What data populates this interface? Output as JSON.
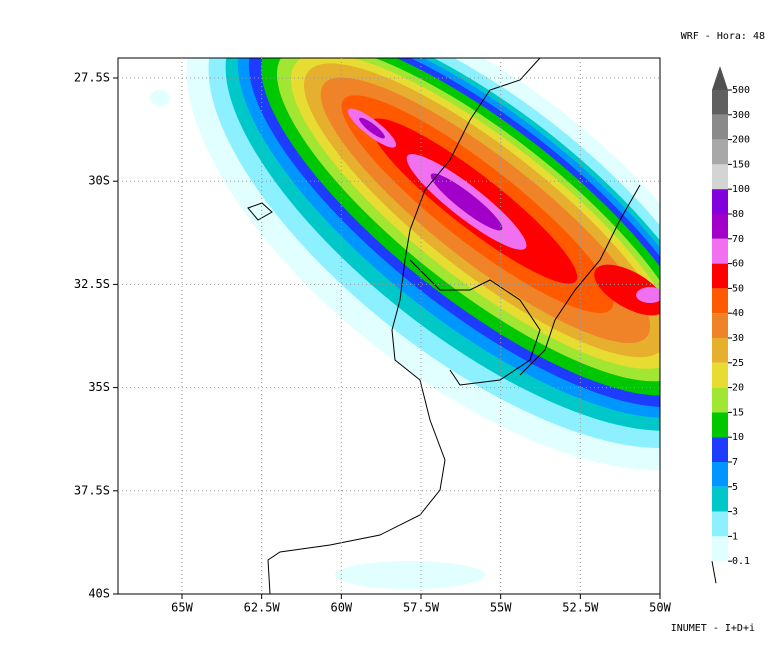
{
  "header": {
    "title": "WRF - Hora: 48"
  },
  "map": {
    "lat_labels": [
      "27.5S",
      "30S",
      "32.5S",
      "35S",
      "37.5S",
      "40S"
    ],
    "lon_labels": [
      "65W",
      "62.5W",
      "60W",
      "57.5W",
      "55W",
      "52.5W",
      "50W"
    ]
  },
  "colorbar": {
    "levels": [
      "500",
      "300",
      "200",
      "150",
      "100",
      "80",
      "70",
      "60",
      "50",
      "40",
      "30",
      "25",
      "20",
      "15",
      "10",
      "7",
      "5",
      "3",
      "1",
      "0.1"
    ],
    "colors": [
      "#606060",
      "#8a8a8a",
      "#a8a8a8",
      "#d4d4d4",
      "#8200dc",
      "#a000c8",
      "#f070f0",
      "#ff0000",
      "#ff5a00",
      "#f08228",
      "#e6af2d",
      "#e6dc32",
      "#a0e632",
      "#00c800",
      "#1e3cff",
      "#0096ff",
      "#00c8c8",
      "#8cf0ff",
      "#e1ffff"
    ],
    "top_color": "#505050"
  },
  "footer": "INUMET - I+D+i"
}
